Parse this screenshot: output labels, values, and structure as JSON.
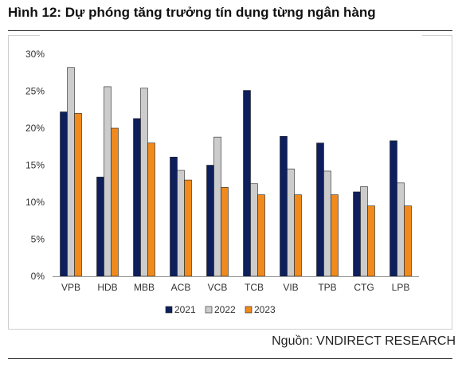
{
  "header": {
    "title": "Hình 12: Dự phóng tăng trưởng tín dụng từng ngân hàng"
  },
  "footer": {
    "source": "Nguồn: VNDIRECT RESEARCH"
  },
  "chart_data": {
    "type": "bar",
    "title": "",
    "xlabel": "",
    "ylabel": "",
    "ylim": [
      0,
      30
    ],
    "yticks": [
      0,
      5,
      10,
      15,
      20,
      25,
      30
    ],
    "ytick_labels": [
      "0%",
      "5%",
      "10%",
      "15%",
      "20%",
      "25%",
      "30%"
    ],
    "grid": false,
    "legend_position": "bottom",
    "categories": [
      "VPB",
      "HDB",
      "MBB",
      "ACB",
      "VCB",
      "TCB",
      "VIB",
      "TPB",
      "CTG",
      "LPB"
    ],
    "series": [
      {
        "name": "2021",
        "color": "#0d1f5c",
        "values": [
          22.2,
          13.4,
          21.3,
          16.1,
          15.0,
          25.1,
          18.9,
          18.0,
          11.4,
          18.3
        ]
      },
      {
        "name": "2022",
        "color": "#cccccc",
        "values": [
          28.2,
          25.6,
          25.4,
          14.3,
          18.8,
          12.5,
          14.5,
          14.2,
          12.1,
          12.6
        ]
      },
      {
        "name": "2023",
        "color": "#f08a1c",
        "values": [
          22.0,
          20.0,
          18.0,
          13.0,
          12.0,
          11.0,
          11.0,
          11.0,
          9.5,
          9.5
        ]
      }
    ]
  }
}
